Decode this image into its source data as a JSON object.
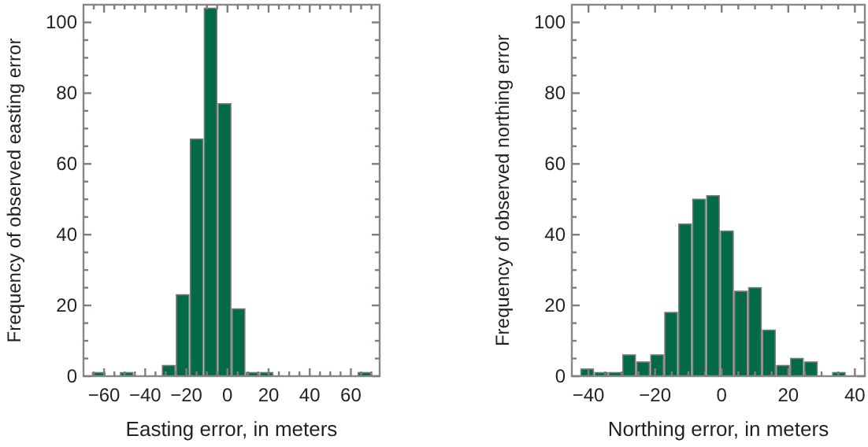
{
  "chart_data": [
    {
      "type": "histogram",
      "xlabel": "Easting error, in meters",
      "ylabel": "Frequency of observed easting error",
      "color": "#006b45",
      "bins": [
        -66,
        -59.2,
        -52.4,
        -45.6,
        -38.8,
        -32,
        -25.2,
        -18.4,
        -11.6,
        -4.8,
        2,
        8.8,
        15.6,
        22.4,
        29.2,
        36,
        42.8,
        49.6,
        56.4,
        63.2,
        70
      ],
      "values": [
        1,
        0,
        1,
        0,
        0,
        3,
        23,
        67,
        104,
        77,
        19,
        1,
        1,
        0,
        0,
        0,
        0,
        0,
        0,
        1
      ],
      "xlim": [
        -70,
        74
      ],
      "ylim": [
        0,
        105
      ],
      "xticks": [
        {
          "value": -65,
          "label": null
        },
        -60,
        {
          "value": -55,
          "label": null
        },
        {
          "value": -50,
          "label": null
        },
        {
          "value": -45,
          "label": null
        },
        -40,
        {
          "value": -35,
          "label": null
        },
        {
          "value": -30,
          "label": null
        },
        {
          "value": -25,
          "label": null
        },
        -20,
        {
          "value": -15,
          "label": null
        },
        {
          "value": -10,
          "label": null
        },
        {
          "value": -5,
          "label": null
        },
        0,
        {
          "value": 5,
          "label": null
        },
        {
          "value": 10,
          "label": null
        },
        {
          "value": 15,
          "label": null
        },
        20,
        {
          "value": 25,
          "label": null
        },
        {
          "value": 30,
          "label": null
        },
        {
          "value": 35,
          "label": null
        },
        40,
        {
          "value": 45,
          "label": null
        },
        {
          "value": 50,
          "label": null
        },
        {
          "value": 55,
          "label": null
        },
        60,
        {
          "value": 65,
          "label": null
        },
        {
          "value": 70,
          "label": null
        }
      ],
      "yticks": [
        0,
        {
          "value": 5,
          "label": null
        },
        {
          "value": 10,
          "label": null
        },
        {
          "value": 15,
          "label": null
        },
        20,
        {
          "value": 25,
          "label": null
        },
        {
          "value": 30,
          "label": null
        },
        {
          "value": 35,
          "label": null
        },
        40,
        {
          "value": 45,
          "label": null
        },
        {
          "value": 50,
          "label": null
        },
        {
          "value": 55,
          "label": null
        },
        60,
        {
          "value": 65,
          "label": null
        },
        {
          "value": 70,
          "label": null
        },
        {
          "value": 75,
          "label": null
        },
        80,
        {
          "value": 85,
          "label": null
        },
        {
          "value": 90,
          "label": null
        },
        {
          "value": 95,
          "label": null
        },
        100
      ]
    },
    {
      "type": "histogram",
      "xlabel": "Northing error, in meters",
      "ylabel": "Frequency of observed northing error",
      "color": "#006b45",
      "bins": [
        -42.5,
        -38.3,
        -34.1,
        -29.9,
        -25.7,
        -21.5,
        -17.3,
        -13.1,
        -8.9,
        -4.7,
        -0.5,
        3.7,
        7.9,
        12.1,
        16.3,
        20.5,
        24.7,
        28.9,
        33.1,
        37.3
      ],
      "values": [
        2,
        1,
        1,
        6,
        4,
        6,
        18,
        43,
        50,
        51,
        41,
        24,
        25,
        13,
        3,
        5,
        4,
        0,
        1
      ],
      "xlim": [
        -45,
        43
      ],
      "ylim": [
        0,
        105
      ],
      "xticks": [
        -40,
        {
          "value": -35,
          "label": null
        },
        {
          "value": -30,
          "label": null
        },
        {
          "value": -25,
          "label": null
        },
        -20,
        {
          "value": -15,
          "label": null
        },
        {
          "value": -10,
          "label": null
        },
        {
          "value": -5,
          "label": null
        },
        0,
        {
          "value": 5,
          "label": null
        },
        {
          "value": 10,
          "label": null
        },
        {
          "value": 15,
          "label": null
        },
        20,
        {
          "value": 25,
          "label": null
        },
        {
          "value": 30,
          "label": null
        },
        {
          "value": 35,
          "label": null
        },
        40
      ],
      "yticks": [
        0,
        {
          "value": 5,
          "label": null
        },
        {
          "value": 10,
          "label": null
        },
        {
          "value": 15,
          "label": null
        },
        20,
        {
          "value": 25,
          "label": null
        },
        {
          "value": 30,
          "label": null
        },
        {
          "value": 35,
          "label": null
        },
        40,
        {
          "value": 45,
          "label": null
        },
        {
          "value": 50,
          "label": null
        },
        {
          "value": 55,
          "label": null
        },
        60,
        {
          "value": 65,
          "label": null
        },
        {
          "value": 70,
          "label": null
        },
        {
          "value": 75,
          "label": null
        },
        80,
        {
          "value": 85,
          "label": null
        },
        {
          "value": 90,
          "label": null
        },
        {
          "value": 95,
          "label": null
        },
        100
      ]
    }
  ]
}
